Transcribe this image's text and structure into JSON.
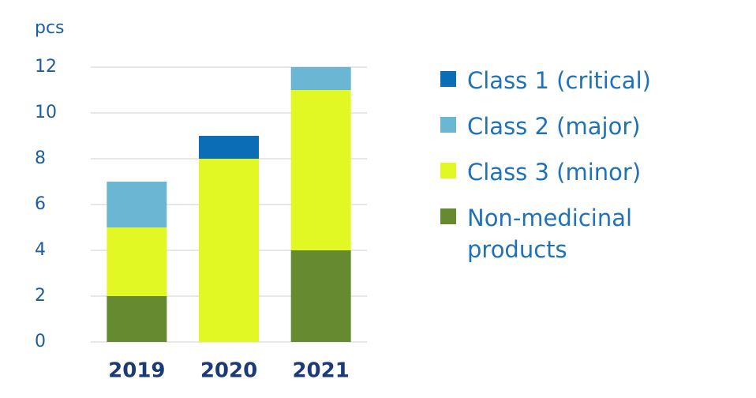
{
  "chart_data": {
    "type": "stacked_bar",
    "y_label": "pcs",
    "categories": [
      "2019",
      "2020",
      "2021"
    ],
    "series": [
      {
        "name": "Class 1 (critical)",
        "color": "#0a6db5",
        "values": [
          0,
          1,
          0
        ]
      },
      {
        "name": "Class 2 (major)",
        "color": "#6ab6d3",
        "values": [
          2,
          0,
          1
        ]
      },
      {
        "name": "Class 3 (minor)",
        "color": "#e2f825",
        "values": [
          3,
          8,
          7
        ]
      },
      {
        "name": "Non-medicinal products",
        "color": "#668a30",
        "values": [
          2,
          0,
          4
        ]
      }
    ],
    "ylim": [
      0,
      12
    ],
    "yticks": [
      0,
      2,
      4,
      6,
      8,
      10,
      12
    ],
    "grid": true
  }
}
